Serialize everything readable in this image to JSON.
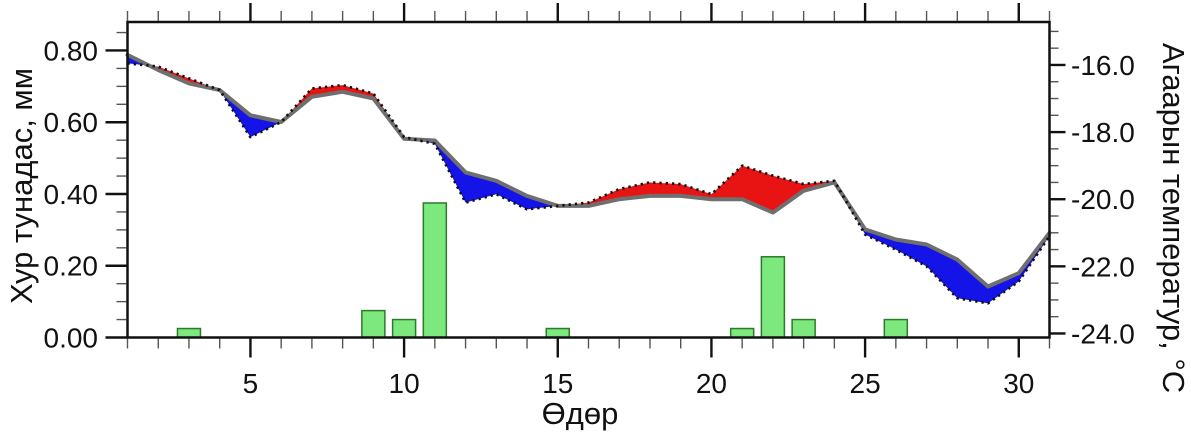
{
  "chart_data": {
    "type": "combo",
    "title": "",
    "xlabel": "Өдөр",
    "ylabel_left": "Хур тунадас, мм",
    "ylabel_right": "Агаарын температур, °C",
    "x": [
      1,
      2,
      3,
      4,
      5,
      6,
      7,
      8,
      9,
      10,
      11,
      12,
      13,
      14,
      15,
      16,
      17,
      18,
      19,
      20,
      21,
      22,
      23,
      24,
      25,
      26,
      27,
      28,
      29,
      30,
      31
    ],
    "series": [
      {
        "name": "precipitation",
        "type": "bar",
        "axis": "left",
        "color": "#7de87d",
        "border_color": "#2d7a2d",
        "points": [
          {
            "day": 3,
            "value": 0.025
          },
          {
            "day": 9,
            "value": 0.075
          },
          {
            "day": 10,
            "value": 0.05
          },
          {
            "day": 11,
            "value": 0.375
          },
          {
            "day": 15,
            "value": 0.025
          },
          {
            "day": 21,
            "value": 0.025
          },
          {
            "day": 22,
            "value": 0.225
          },
          {
            "day": 23,
            "value": 0.05
          },
          {
            "day": 26,
            "value": 0.05
          }
        ]
      },
      {
        "name": "temperature-solid",
        "type": "line",
        "style": "solid",
        "axis": "right",
        "color": "#6f6f6f",
        "values": [
          -15.7,
          -16.15,
          -16.55,
          -16.75,
          -17.5,
          -17.7,
          -16.95,
          -16.8,
          -17.0,
          -18.2,
          -18.25,
          -19.2,
          -19.45,
          -19.9,
          -20.2,
          -20.2,
          -20.0,
          -19.9,
          -19.9,
          -20.0,
          -20.0,
          -20.4,
          -19.75,
          -19.5,
          -20.9,
          -21.2,
          -21.35,
          -21.8,
          -22.6,
          -22.2,
          -21.0
        ]
      },
      {
        "name": "temperature-dashed",
        "type": "line",
        "style": "dashed",
        "axis": "right",
        "color": "#111111",
        "values": [
          -15.95,
          -16.05,
          -16.4,
          -16.75,
          -18.15,
          -17.7,
          -16.7,
          -16.6,
          -16.85,
          -18.15,
          -18.35,
          -20.1,
          -19.85,
          -20.3,
          -20.2,
          -20.1,
          -19.7,
          -19.5,
          -19.55,
          -19.85,
          -19.0,
          -19.3,
          -19.55,
          -19.45,
          -21.05,
          -21.5,
          -22.0,
          -22.95,
          -23.1,
          -22.45,
          -21.1
        ]
      }
    ],
    "fills": {
      "dashed_above_color": "#e81414",
      "dashed_below_color": "#1414e8"
    },
    "axes": {
      "x": {
        "tick_labels": [
          "5",
          "10",
          "15",
          "20",
          "25",
          "30"
        ],
        "tick_values": [
          5,
          10,
          15,
          20,
          25,
          30
        ],
        "minor_step": 1,
        "range": [
          1,
          31
        ]
      },
      "left": {
        "tick_labels": [
          "0.00",
          "0.20",
          "0.40",
          "0.60",
          "0.80"
        ],
        "tick_values": [
          0,
          0.2,
          0.4,
          0.6,
          0.8
        ],
        "minor_step": 0.05,
        "range": [
          0,
          0.8794
        ]
      },
      "right": {
        "tick_labels": [
          "-24.0",
          "-22.0",
          "-20.0",
          "-18.0",
          "-16.0"
        ],
        "tick_values": [
          -24,
          -22,
          -20,
          -18,
          -16
        ],
        "minor_step": 0.5,
        "range": [
          -24.12,
          -14.72
        ]
      }
    },
    "legend": "none",
    "grid": "off"
  }
}
